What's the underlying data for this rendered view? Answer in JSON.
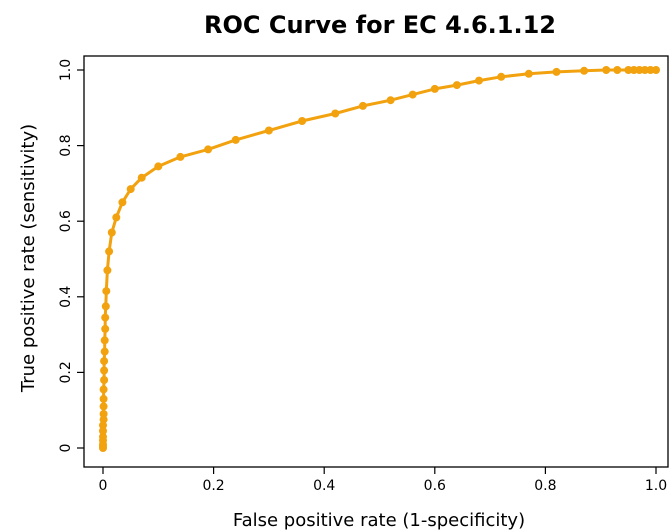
{
  "chart_data": {
    "type": "line",
    "title": "ROC Curve for EC 4.6.1.12",
    "xlabel": "False positive rate (1-specificity)",
    "ylabel": "True positive rate (sensitivity)",
    "xlim": [
      0,
      1
    ],
    "ylim": [
      0,
      1
    ],
    "x_ticks": [
      "0",
      "0.2",
      "0.4",
      "0.6",
      "0.8",
      "1.0"
    ],
    "y_ticks": [
      "0",
      "0.2",
      "0.4",
      "0.6",
      "0.8",
      "1.0"
    ],
    "grid": false,
    "line_color": "#F2A20F",
    "series": [
      {
        "x": [
          0,
          0,
          0,
          0,
          0,
          0,
          0,
          0.001,
          0.001,
          0.001,
          0.001,
          0.001,
          0.002,
          0.002,
          0.002,
          0.003,
          0.003,
          0.004,
          0.004,
          0.005,
          0.006,
          0.008,
          0.011,
          0.016,
          0.024,
          0.035,
          0.05,
          0.07,
          0.1,
          0.14,
          0.19,
          0.24,
          0.3,
          0.36,
          0.42,
          0.47,
          0.52,
          0.56,
          0.6,
          0.64,
          0.68,
          0.72,
          0.77,
          0.82,
          0.87,
          0.91,
          0.93,
          0.95,
          0.96,
          0.97,
          0.98,
          0.99,
          1.0
        ],
        "y": [
          0,
          0.005,
          0.01,
          0.02,
          0.03,
          0.045,
          0.06,
          0.075,
          0.09,
          0.11,
          0.13,
          0.155,
          0.18,
          0.205,
          0.23,
          0.255,
          0.285,
          0.315,
          0.345,
          0.375,
          0.415,
          0.47,
          0.52,
          0.57,
          0.61,
          0.65,
          0.685,
          0.715,
          0.745,
          0.77,
          0.79,
          0.815,
          0.84,
          0.865,
          0.885,
          0.905,
          0.92,
          0.935,
          0.95,
          0.96,
          0.972,
          0.982,
          0.99,
          0.995,
          0.998,
          1.0,
          1.0,
          1.0,
          1.0,
          1.0,
          1.0,
          1.0,
          1.0
        ]
      }
    ]
  }
}
